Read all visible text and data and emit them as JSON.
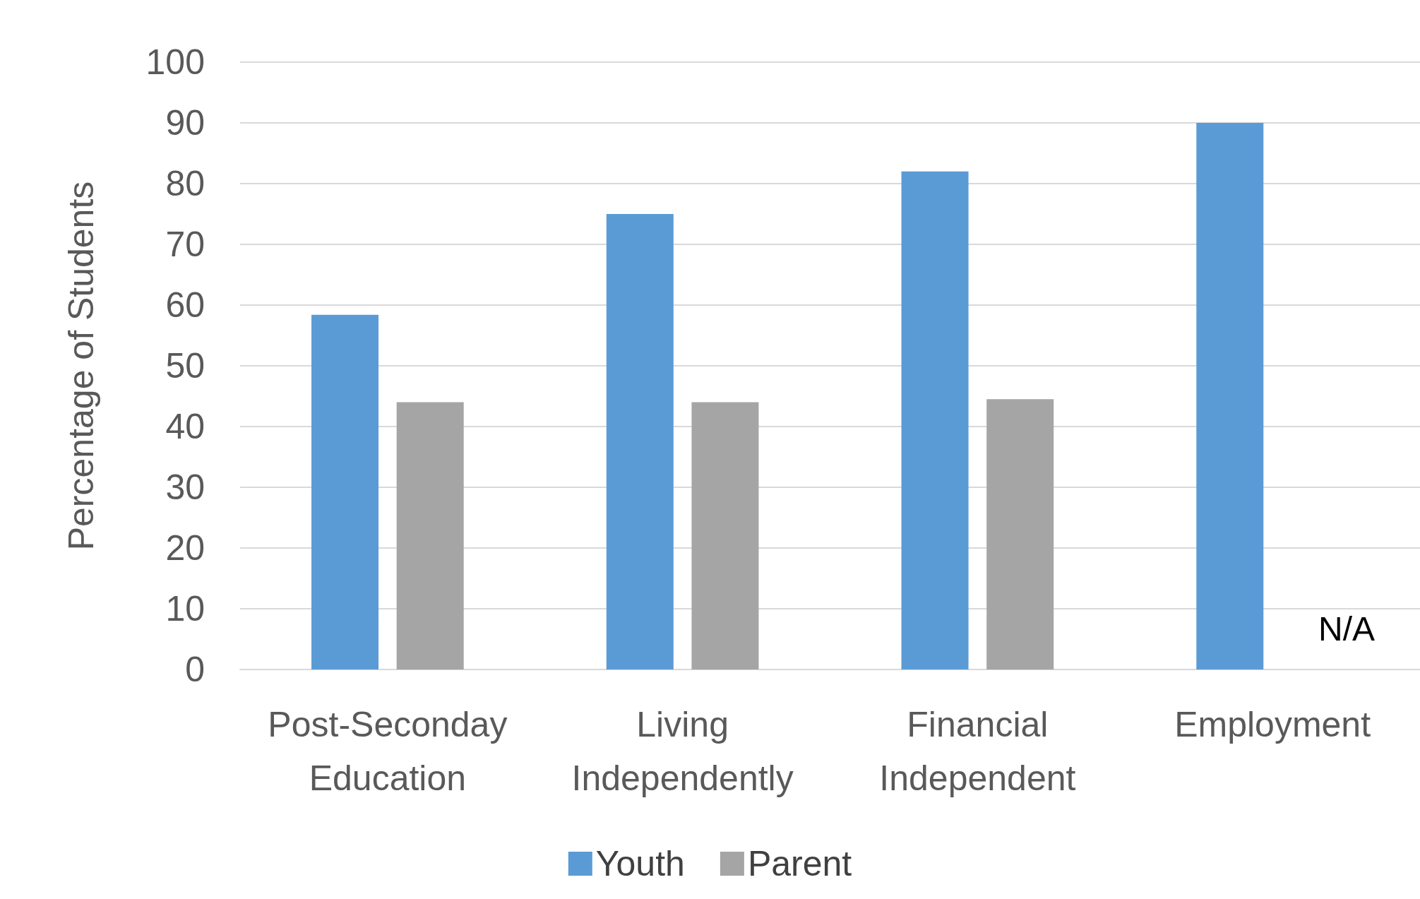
{
  "chart_data": {
    "type": "bar",
    "ylabel": "Percentage of Students",
    "categories": [
      "Post-Seconday\nEducation",
      "Living\nIndependently",
      "Financial\nIndependent",
      "Employment"
    ],
    "series": [
      {
        "name": "Youth",
        "color": "#5b9bd5",
        "values": [
          58.4,
          75,
          82,
          90
        ]
      },
      {
        "name": "Parent",
        "color": "#a5a5a5",
        "values": [
          44,
          44,
          44.5,
          null
        ]
      }
    ],
    "ylim": [
      0,
      100
    ],
    "yticks": [
      0,
      10,
      20,
      30,
      40,
      50,
      60,
      70,
      80,
      90,
      100
    ],
    "grid": "y",
    "legend": "bottom",
    "annotations": [
      "N/A"
    ]
  }
}
